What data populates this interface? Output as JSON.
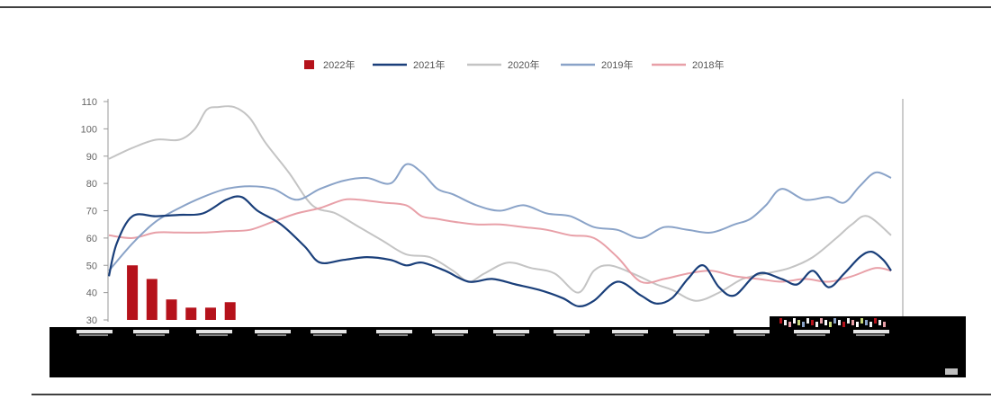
{
  "chart_data": {
    "type": "line",
    "title": "",
    "xlabel": "",
    "ylabel": "",
    "ylim": [
      30,
      110
    ],
    "yticks": [
      30,
      40,
      50,
      60,
      70,
      80,
      90,
      100,
      110
    ],
    "x_tick_labels_legible": false,
    "x_range": [
      0,
      100
    ],
    "grid": false,
    "legend_position": "top-center",
    "series": [
      {
        "name": "2022年",
        "render": "bar",
        "color": "#b5121b",
        "x": [
          3,
          5.5,
          8,
          10.5,
          13,
          15.5
        ],
        "values": [
          50,
          45,
          37.5,
          34.5,
          34.5,
          36.5
        ]
      },
      {
        "name": "2021年",
        "render": "line",
        "color": "#1a3f7a",
        "x": [
          0,
          1,
          3,
          6,
          9,
          12,
          15,
          17,
          19,
          22,
          25,
          27,
          30,
          33,
          36,
          38,
          40,
          43,
          46,
          49,
          52,
          55,
          58,
          60,
          62,
          65,
          68,
          70,
          72,
          74,
          76,
          78,
          80,
          83,
          86,
          88,
          90,
          92,
          94,
          96,
          97.5,
          99,
          100
        ],
        "values": [
          46,
          58,
          68,
          68,
          68.5,
          69,
          74,
          75,
          70,
          65,
          57,
          51,
          52,
          53,
          52,
          50,
          51,
          48,
          44,
          45,
          43,
          41,
          38,
          35,
          37,
          44,
          39,
          36,
          38,
          45,
          50,
          42,
          39,
          47,
          45,
          43,
          48,
          42,
          47,
          53,
          55,
          52,
          48
        ]
      },
      {
        "name": "2020年",
        "render": "line",
        "color": "#c4c4c4",
        "x": [
          0,
          3,
          6,
          9,
          11,
          12.5,
          14,
          16,
          18,
          20,
          23,
          26,
          29,
          32,
          35,
          38,
          41,
          44,
          46,
          48,
          51,
          54,
          57,
          60,
          62,
          64,
          67,
          70,
          72,
          75,
          78,
          81,
          84,
          87,
          90,
          93,
          95,
          97,
          100
        ],
        "values": [
          89,
          93,
          96,
          96,
          100,
          107,
          108,
          108,
          104,
          95,
          84,
          72,
          69,
          64,
          59,
          54,
          53,
          48,
          44,
          47,
          51,
          49,
          47,
          40,
          48,
          50,
          47,
          43,
          41,
          37,
          40,
          45,
          47,
          49,
          53,
          60,
          65,
          68,
          61
        ]
      },
      {
        "name": "2019年",
        "render": "line",
        "color": "#8aa3c8",
        "x": [
          0,
          3,
          6,
          9,
          12,
          15,
          18,
          21,
          24,
          27,
          30,
          33,
          36,
          38,
          40,
          42,
          44,
          47,
          50,
          53,
          56,
          59,
          62,
          65,
          68,
          71,
          74,
          77,
          80,
          82,
          84,
          86,
          89,
          92,
          94,
          96,
          98,
          100
        ],
        "values": [
          48,
          58,
          66,
          71,
          75,
          78,
          79,
          78,
          74,
          78,
          81,
          82,
          80,
          87,
          84,
          78,
          76,
          72,
          70,
          72,
          69,
          68,
          64,
          63,
          60,
          64,
          63,
          62,
          65,
          67,
          72,
          78,
          74,
          75,
          73,
          79,
          84,
          82
        ]
      },
      {
        "name": "2018年",
        "render": "line",
        "color": "#e8a0a8",
        "x": [
          0,
          3,
          6,
          9,
          12,
          15,
          18,
          21,
          24,
          27,
          30,
          32,
          35,
          38,
          40,
          42,
          44,
          47,
          50,
          53,
          56,
          59,
          62,
          65,
          68,
          71,
          74,
          77,
          80,
          83,
          86,
          89,
          92,
          95,
          98,
          100
        ],
        "values": [
          61,
          60,
          62,
          62,
          62,
          62.5,
          63,
          66,
          69,
          71,
          74,
          74,
          73,
          72,
          68,
          67,
          66,
          65,
          65,
          64,
          63,
          61,
          60,
          53,
          44,
          45,
          47,
          48,
          46,
          45,
          44,
          45,
          44,
          46,
          49,
          48
        ]
      }
    ]
  }
}
